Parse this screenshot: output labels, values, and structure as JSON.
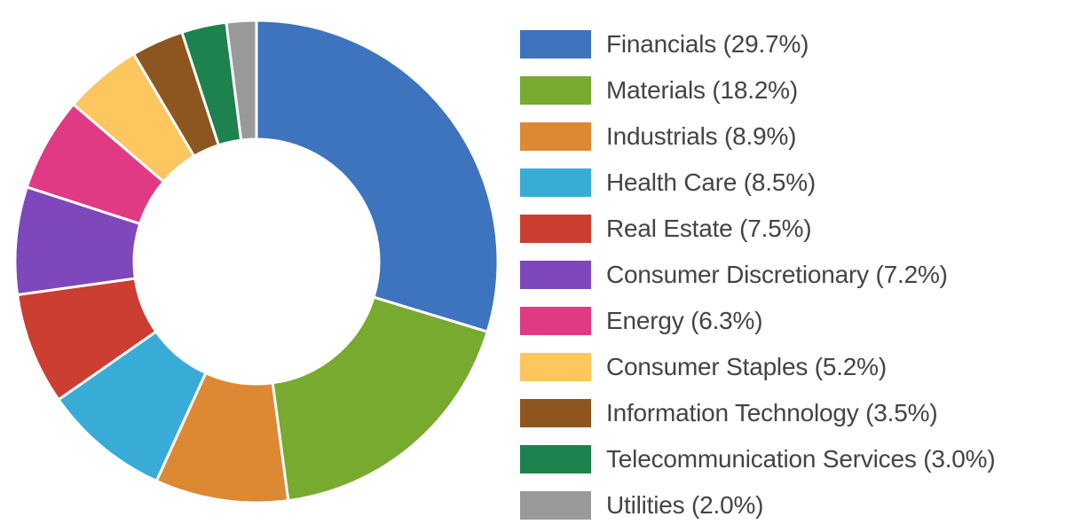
{
  "chart_data": {
    "type": "pie",
    "subtype": "donut",
    "title": "",
    "legend_position": "right",
    "categories": [
      "Financials",
      "Materials",
      "Industrials",
      "Health Care",
      "Real Estate",
      "Consumer Discretionary",
      "Energy",
      "Consumer Staples",
      "Information Technology",
      "Telecommunication Services",
      "Utilities"
    ],
    "values": [
      29.7,
      18.2,
      8.9,
      8.5,
      7.5,
      7.2,
      6.3,
      5.2,
      3.5,
      3.0,
      2.0
    ],
    "unit": "%",
    "colors": [
      "#3e74be",
      "#78aa2f",
      "#dd8833",
      "#38acd6",
      "#cb3e31",
      "#7f47bc",
      "#df3a83",
      "#fdc65e",
      "#8d561e",
      "#1d824e",
      "#999999"
    ],
    "start_angle": "12 o'clock",
    "direction": "clockwise"
  },
  "legend": {
    "items": [
      {
        "label": "Financials (29.7%)",
        "color": "#3e74be"
      },
      {
        "label": "Materials (18.2%)",
        "color": "#78aa2f"
      },
      {
        "label": "Industrials (8.9%)",
        "color": "#dd8833"
      },
      {
        "label": "Health Care (8.5%)",
        "color": "#38acd6"
      },
      {
        "label": "Real Estate (7.5%)",
        "color": "#cb3e31"
      },
      {
        "label": "Consumer Discretionary (7.2%)",
        "color": "#7f47bc"
      },
      {
        "label": "Energy (6.3%)",
        "color": "#df3a83"
      },
      {
        "label": "Consumer Staples (5.2%)",
        "color": "#fdc65e"
      },
      {
        "label": "Information Technology (3.5%)",
        "color": "#8d561e"
      },
      {
        "label": "Telecommunication Services (3.0%)",
        "color": "#1d824e"
      },
      {
        "label": "Utilities (2.0%)",
        "color": "#999999"
      }
    ]
  }
}
